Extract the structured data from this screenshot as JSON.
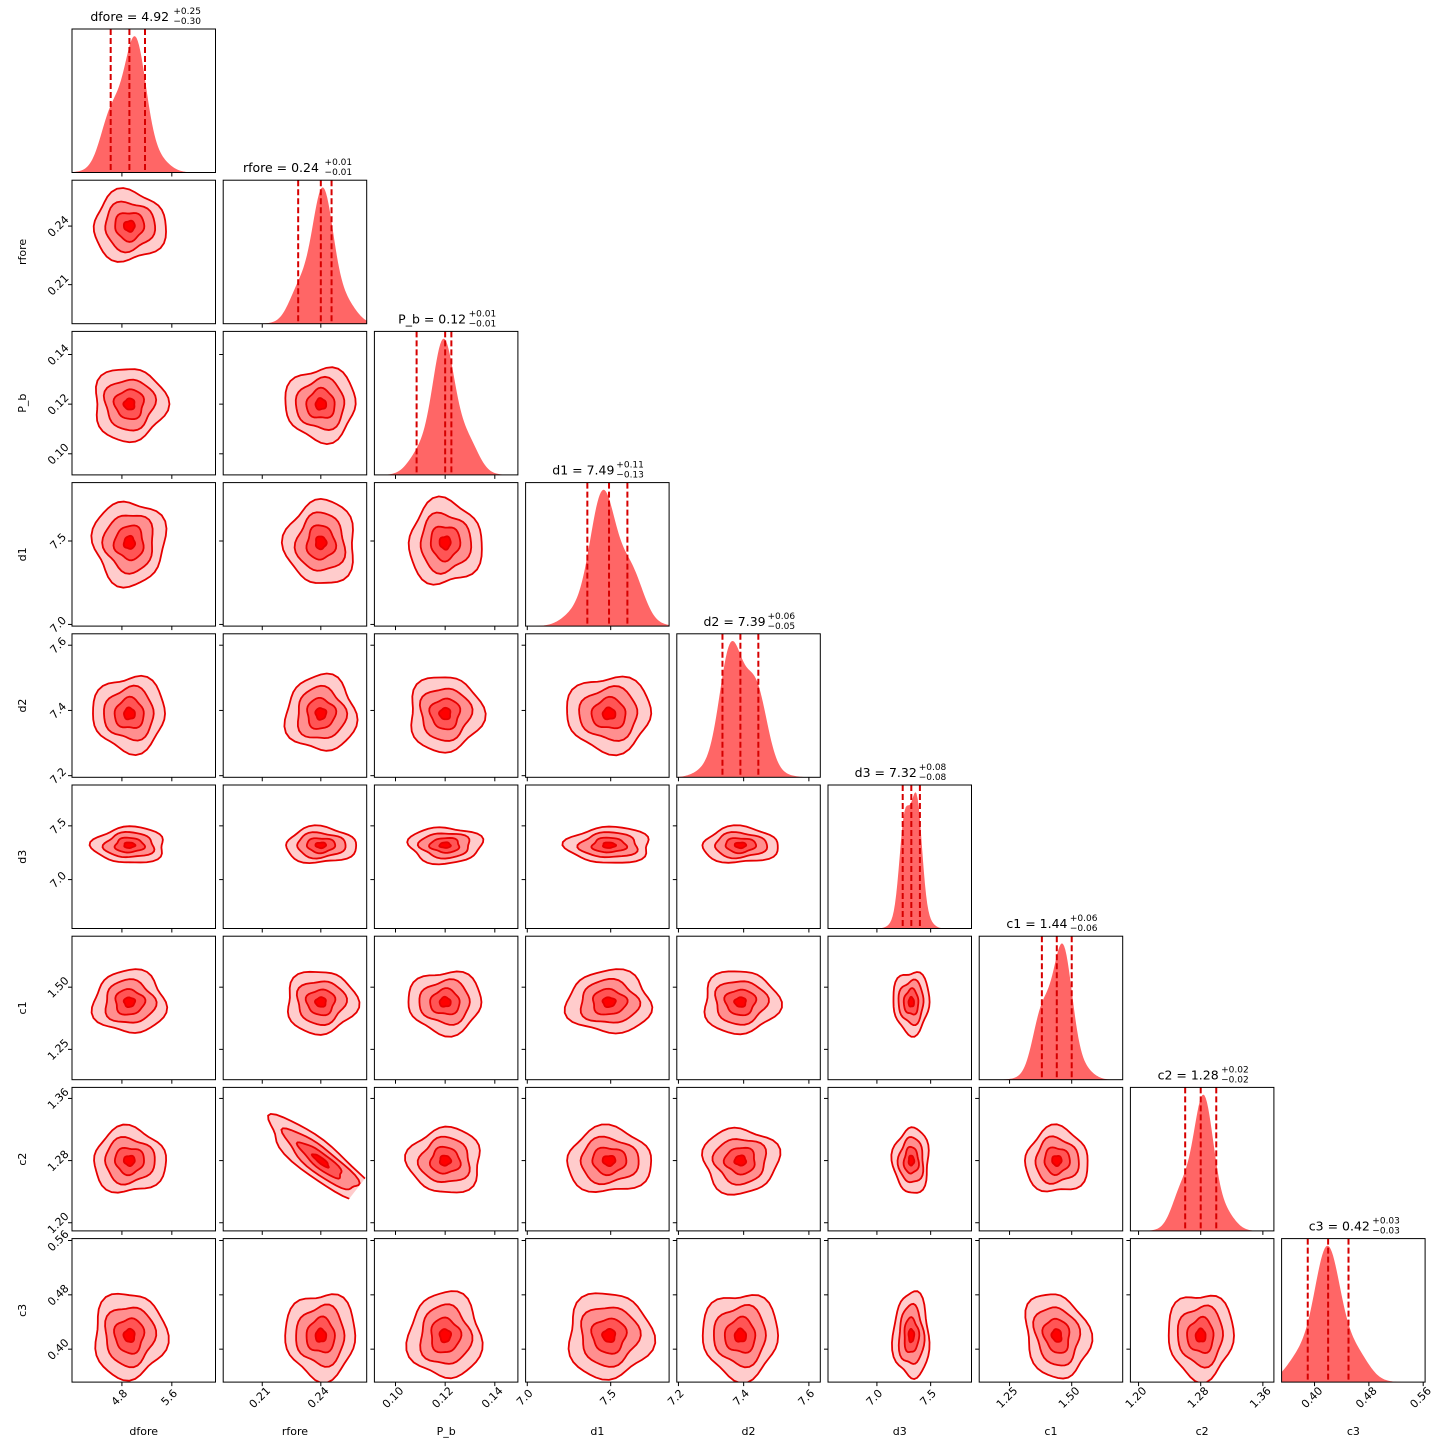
{
  "chart_data": {
    "type": "corner",
    "colors": {
      "hist": "#ff6666",
      "median_line": "#d60000",
      "contour_outer": "#ffcccc",
      "contour_mid": "#ff8f8f",
      "contour_inner": "#ff5555",
      "contour_core": "#ff0000",
      "contour_edge": "#e60000"
    },
    "parameters": [
      {
        "name": "dfore",
        "title": "dfore = 4.92",
        "median": 4.92,
        "err_plus": "+0.25",
        "err_minus": "−0.30",
        "range": [
          4.0,
          6.3
        ],
        "ticks": [
          4.8,
          5.6
        ],
        "tick_labels": [
          "4.8",
          "5.6"
        ],
        "q16": 4.62,
        "q84": 5.17
      },
      {
        "name": "rfore",
        "title": "rfore = 0.24",
        "median": 0.24,
        "err_plus": "+0.01",
        "err_minus": "−0.01",
        "range": [
          0.19,
          0.2635
        ],
        "ticks": [
          0.21,
          0.24
        ],
        "tick_labels": [
          "0.21",
          "0.24"
        ],
        "q16": 0.2284,
        "q84": 0.2455
      },
      {
        "name": "P_b",
        "title": "P_b = 0.12",
        "median": 0.12,
        "err_plus": "+0.01",
        "err_minus": "−0.01",
        "range": [
          0.0915,
          0.1493
        ],
        "ticks": [
          0.1,
          0.12,
          0.14
        ],
        "tick_labels": [
          "0.10",
          "0.12",
          "0.14"
        ],
        "q16": 0.1085,
        "q84": 0.1225
      },
      {
        "name": "d1",
        "title": "d1 = 7.49",
        "median": 7.49,
        "err_plus": "+0.11",
        "err_minus": "−0.13",
        "range": [
          6.99,
          7.85
        ],
        "ticks": [
          7.0,
          7.5
        ],
        "tick_labels": [
          "7.0",
          "7.5"
        ],
        "q16": 7.36,
        "q84": 7.6
      },
      {
        "name": "d2",
        "title": "d2 = 7.39",
        "median": 7.39,
        "err_plus": "+0.06",
        "err_minus": "−0.05",
        "range": [
          7.195,
          7.635
        ],
        "ticks": [
          7.2,
          7.4,
          7.6
        ],
        "tick_labels": [
          "7.2",
          "7.4",
          "7.6"
        ],
        "q16": 7.335,
        "q84": 7.445
      },
      {
        "name": "d3",
        "title": "d3 = 7.32",
        "median": 7.32,
        "err_plus": "+0.08",
        "err_minus": "−0.08",
        "range": [
          6.545,
          7.88
        ],
        "ticks": [
          7.0,
          7.5
        ],
        "tick_labels": [
          "7.0",
          "7.5"
        ],
        "q16": 7.24,
        "q84": 7.4
      },
      {
        "name": "c1",
        "title": "c1 = 1.44",
        "median": 1.44,
        "err_plus": "+0.06",
        "err_minus": "−0.06",
        "range": [
          1.128,
          1.705
        ],
        "ticks": [
          1.25,
          1.5
        ],
        "tick_labels": [
          "1.25",
          "1.50"
        ],
        "q16": 1.38,
        "q84": 1.5
      },
      {
        "name": "c2",
        "title": "c2 = 1.28",
        "median": 1.28,
        "err_plus": "+0.02",
        "err_minus": "−0.02",
        "range": [
          1.1895,
          1.3742
        ],
        "ticks": [
          1.2,
          1.28,
          1.36
        ],
        "tick_labels": [
          "1.20",
          "1.28",
          "1.36"
        ],
        "q16": 1.26,
        "q84": 1.3
      },
      {
        "name": "c3",
        "title": "c3 = 0.42",
        "median": 0.42,
        "err_plus": "+0.03",
        "err_minus": "−0.03",
        "range": [
          0.3515,
          0.5628
        ],
        "ticks": [
          0.4,
          0.48,
          0.56
        ],
        "tick_labels": [
          "0.40",
          "0.48",
          "0.56"
        ],
        "q16": 0.39,
        "q84": 0.45
      }
    ]
  }
}
